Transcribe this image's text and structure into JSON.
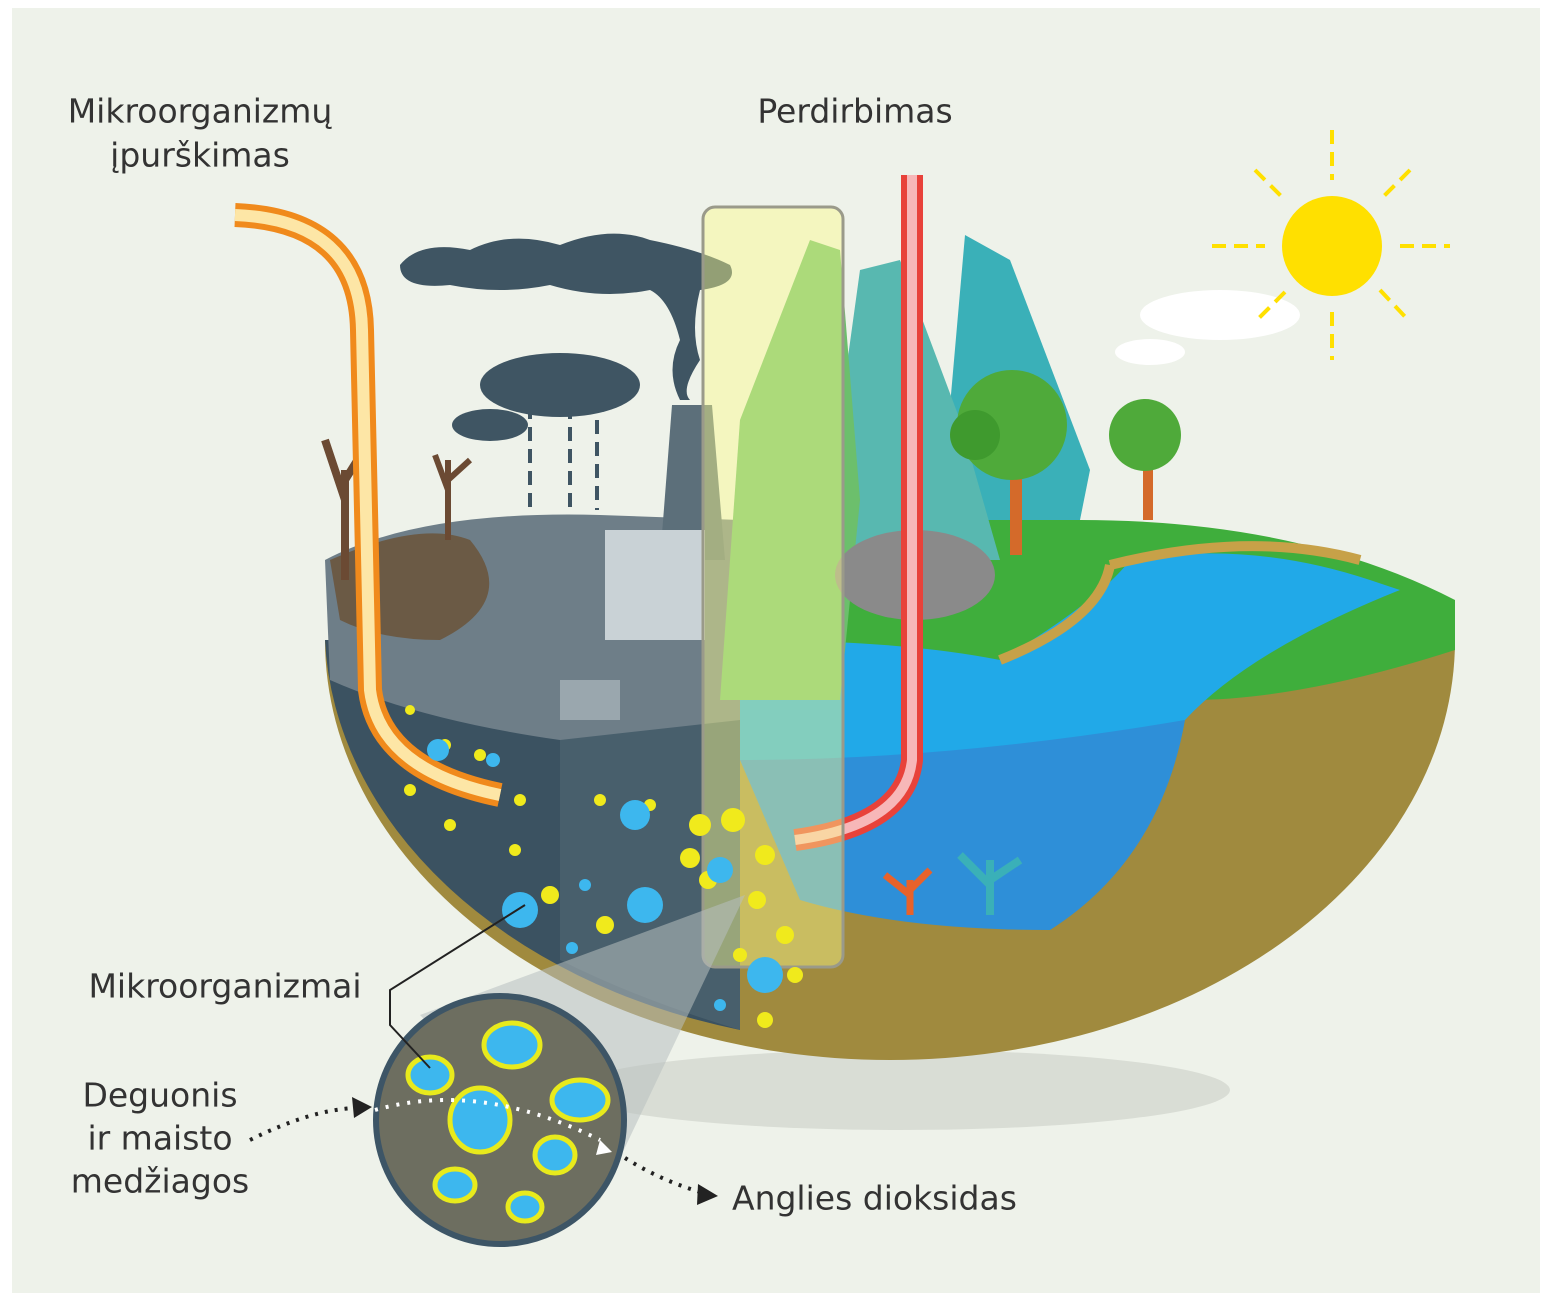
{
  "labels": {
    "injection": [
      "Mikroorganizmų",
      "įpurškimas"
    ],
    "recycling": "Perdirbimas",
    "microorganisms": "Mikroorganizmai",
    "oxygen": [
      "Deguonis",
      "ir maisto",
      "medžiagos"
    ],
    "co2": "Anglies dioksidas"
  }
}
